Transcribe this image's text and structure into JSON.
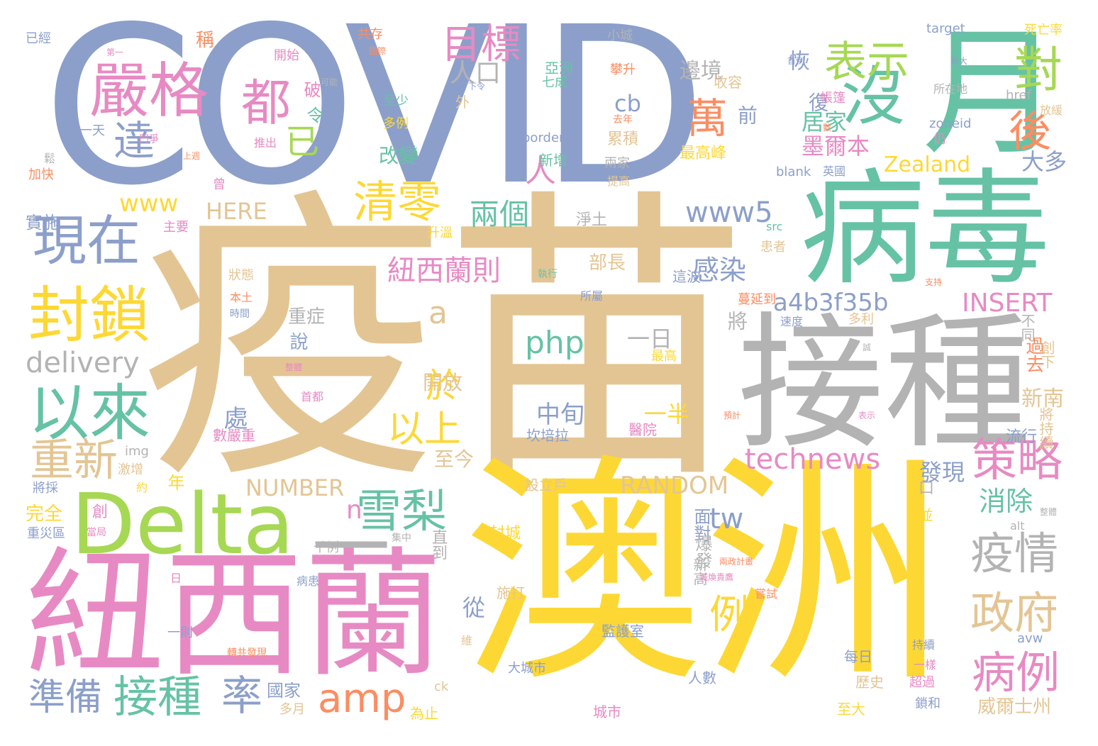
{
  "palette": {
    "slate": "#8c9fca",
    "tan": "#e3c594",
    "gold": "#fdd835",
    "pink": "#e78ac3",
    "green": "#66c2a5",
    "gray": "#b3b3b3",
    "lime": "#a6d854",
    "orange": "#fc8d62"
  },
  "words": [
    {
      "text": "COVID",
      "color": "slate"
    },
    {
      "text": "疫苗",
      "color": "tan"
    },
    {
      "text": "澳洲",
      "color": "gold"
    },
    {
      "text": "紐西蘭",
      "color": "pink"
    },
    {
      "text": "接種",
      "color": "gray"
    },
    {
      "text": "病毒",
      "color": "green"
    },
    {
      "text": "月",
      "color": "green"
    },
    {
      "text": "Delta",
      "color": "lime"
    },
    {
      "text": "嚴格",
      "color": "pink"
    },
    {
      "text": "都",
      "color": "pink"
    },
    {
      "text": "沒",
      "color": "green"
    },
    {
      "text": "目標",
      "color": "pink"
    },
    {
      "text": "表示",
      "color": "lime"
    },
    {
      "text": "對",
      "color": "lime"
    },
    {
      "text": "萬",
      "color": "orange"
    },
    {
      "text": "後",
      "color": "orange"
    },
    {
      "text": "人口",
      "color": "gray"
    },
    {
      "text": "已",
      "color": "lime"
    },
    {
      "text": "達",
      "color": "slate"
    },
    {
      "text": "現在",
      "color": "slate"
    },
    {
      "text": "清零",
      "color": "gold"
    },
    {
      "text": "封鎖",
      "color": "gold"
    },
    {
      "text": "以來",
      "color": "green"
    },
    {
      "text": "人",
      "color": "pink"
    },
    {
      "text": "策略",
      "color": "pink"
    },
    {
      "text": "疫情",
      "color": "gray"
    },
    {
      "text": "政府",
      "color": "tan"
    },
    {
      "text": "病例",
      "color": "pink"
    },
    {
      "text": "雪梨",
      "color": "green"
    },
    {
      "text": "以上",
      "color": "gold"
    },
    {
      "text": "於",
      "color": "gold"
    },
    {
      "text": "重新",
      "color": "tan"
    },
    {
      "text": "準備",
      "color": "slate"
    },
    {
      "text": "接種",
      "color": "green"
    },
    {
      "text": "率",
      "color": "slate"
    },
    {
      "text": "amp",
      "color": "orange"
    },
    {
      "text": "technews",
      "color": "pink"
    },
    {
      "text": "RANDOM",
      "color": "tan"
    },
    {
      "text": "NUMBER",
      "color": "tan"
    },
    {
      "text": "INSERT",
      "color": "pink"
    },
    {
      "text": "a4b3f35b",
      "color": "slate"
    },
    {
      "text": "www5",
      "color": "slate"
    },
    {
      "text": "www",
      "color": "gold"
    },
    {
      "text": "HERE",
      "color": "tan"
    },
    {
      "text": "delivery",
      "color": "gray"
    },
    {
      "text": "php",
      "color": "green"
    },
    {
      "text": "Zealand",
      "color": "gold"
    },
    {
      "text": "兩個",
      "color": "green"
    },
    {
      "text": "紐西蘭則",
      "color": "pink"
    },
    {
      "text": "感染",
      "color": "slate"
    },
    {
      "text": "例",
      "color": "gold"
    },
    {
      "text": "一",
      "color": "gray"
    },
    {
      "text": "n",
      "color": "pink"
    },
    {
      "text": "a",
      "color": "tan"
    },
    {
      "text": "tw",
      "color": "slate"
    },
    {
      "text": "cb",
      "color": "slate"
    },
    {
      "text": "消除",
      "color": "green"
    },
    {
      "text": "發現",
      "color": "slate"
    },
    {
      "text": "流行",
      "color": "slate"
    },
    {
      "text": "居家",
      "color": "green"
    },
    {
      "text": "墨爾本",
      "color": "pink"
    },
    {
      "text": "改變",
      "color": "green"
    },
    {
      "text": "大多",
      "color": "slate"
    },
    {
      "text": "新南",
      "color": "tan"
    },
    {
      "text": "威爾士州",
      "color": "tan"
    },
    {
      "text": "中旬",
      "color": "slate"
    },
    {
      "text": "一半",
      "color": "gold"
    },
    {
      "text": "一日",
      "color": "gray"
    },
    {
      "text": "部長",
      "color": "tan"
    },
    {
      "text": "開放",
      "color": "tan"
    },
    {
      "text": "至今",
      "color": "tan"
    },
    {
      "text": "重症",
      "color": "gray"
    },
    {
      "text": "實施",
      "color": "slate"
    },
    {
      "text": "完全",
      "color": "gold"
    },
    {
      "text": "國家",
      "color": "slate"
    },
    {
      "text": "邊境",
      "color": "gray"
    },
    {
      "text": "收容",
      "color": "tan"
    },
    {
      "text": "累積",
      "color": "tan"
    },
    {
      "text": "新增",
      "color": "green"
    },
    {
      "text": "最高峰",
      "color": "gold"
    },
    {
      "text": "淨土",
      "color": "gray"
    },
    {
      "text": "恢",
      "color": "slate"
    },
    {
      "text": "復",
      "color": "slate"
    },
    {
      "text": "前",
      "color": "slate"
    },
    {
      "text": "令",
      "color": "green"
    },
    {
      "text": "破",
      "color": "pink"
    },
    {
      "text": "處",
      "color": "slate"
    },
    {
      "text": "說",
      "color": "slate"
    },
    {
      "text": "將",
      "color": "gray"
    },
    {
      "text": "年",
      "color": "gold"
    },
    {
      "text": "從",
      "color": "slate"
    },
    {
      "text": "口",
      "color": "gray"
    },
    {
      "text": "並",
      "color": "gold"
    },
    {
      "text": "過去",
      "color": "orange"
    },
    {
      "text": "不同",
      "color": "gray"
    },
    {
      "text": "創下",
      "color": "tan"
    },
    {
      "text": "將持續",
      "color": "tan"
    },
    {
      "text": "面對",
      "color": "slate"
    },
    {
      "text": "爆發",
      "color": "gray"
    },
    {
      "text": "新高",
      "color": "gray"
    },
    {
      "text": "直到",
      "color": "gray"
    },
    {
      "text": "封城",
      "color": "gold"
    },
    {
      "text": "施打",
      "color": "tan"
    },
    {
      "text": "監護室",
      "color": "slate"
    },
    {
      "text": "設立戶",
      "color": "tan"
    },
    {
      "text": "醫院",
      "color": "pink"
    },
    {
      "text": "坎培拉",
      "color": "slate"
    },
    {
      "text": "數嚴重",
      "color": "pink"
    },
    {
      "text": "首都",
      "color": "pink"
    },
    {
      "text": "最高",
      "color": "gold"
    },
    {
      "text": "速度",
      "color": "slate"
    },
    {
      "text": "蔓延到",
      "color": "orange"
    },
    {
      "text": "多利",
      "color": "tan"
    },
    {
      "text": "執行",
      "color": "green"
    },
    {
      "text": "所屬",
      "color": "slate"
    },
    {
      "text": "這波",
      "color": "slate"
    },
    {
      "text": "狀態",
      "color": "tan"
    },
    {
      "text": "本土",
      "color": "orange"
    },
    {
      "text": "時間",
      "color": "slate"
    },
    {
      "text": "主要",
      "color": "pink"
    },
    {
      "text": "升溫",
      "color": "gold"
    },
    {
      "text": "src",
      "color": "green"
    },
    {
      "text": "患者",
      "color": "tan"
    },
    {
      "text": "img",
      "color": "gray"
    },
    {
      "text": "激增",
      "color": "tan"
    },
    {
      "text": "將採",
      "color": "slate"
    },
    {
      "text": "約",
      "color": "gold"
    },
    {
      "text": "創",
      "color": "pink"
    },
    {
      "text": "當局",
      "color": "pink"
    },
    {
      "text": "重災區",
      "color": "slate"
    },
    {
      "text": "千例",
      "color": "gray"
    },
    {
      "text": "集中",
      "color": "gray"
    },
    {
      "text": "病患",
      "color": "slate"
    },
    {
      "text": "日",
      "color": "pink"
    },
    {
      "text": "一則",
      "color": "slate"
    },
    {
      "text": "轉共發現",
      "color": "orange"
    },
    {
      "text": "維",
      "color": "tan"
    },
    {
      "text": "城市",
      "color": "pink"
    },
    {
      "text": "多月",
      "color": "tan"
    },
    {
      "text": "為止",
      "color": "gold"
    },
    {
      "text": "大城市",
      "color": "slate"
    },
    {
      "text": "ck",
      "color": "tan"
    },
    {
      "text": "人數",
      "color": "slate"
    },
    {
      "text": "點",
      "color": "gold"
    },
    {
      "text": "每日",
      "color": "slate"
    },
    {
      "text": "歷史",
      "color": "tan"
    },
    {
      "text": "至大",
      "color": "gold"
    },
    {
      "text": "超過",
      "color": "pink"
    },
    {
      "text": "鎖和",
      "color": "slate"
    },
    {
      "text": "持續",
      "color": "slate"
    },
    {
      "text": "一樣",
      "color": "pink"
    },
    {
      "text": "avw",
      "color": "slate"
    },
    {
      "text": "alt",
      "color": "gray"
    },
    {
      "text": "嘗試",
      "color": "orange"
    },
    {
      "text": "城煥責鷹",
      "color": "pink"
    },
    {
      "text": "兩政計畫",
      "color": "orange"
    },
    {
      "text": "整體",
      "color": "gray"
    },
    {
      "text": "預計",
      "color": "orange"
    },
    {
      "text": "表示",
      "color": "pink"
    },
    {
      "text": "支持",
      "color": "orange"
    },
    {
      "text": "整體",
      "color": "pink"
    },
    {
      "text": "已經",
      "color": "slate"
    },
    {
      "text": "稱",
      "color": "orange"
    },
    {
      "text": "共存",
      "color": "orange"
    },
    {
      "text": "國際",
      "color": "orange"
    },
    {
      "text": "小城",
      "color": "gray"
    },
    {
      "text": "target",
      "color": "slate"
    },
    {
      "text": "死亡率",
      "color": "gold"
    },
    {
      "text": "第一",
      "color": "pink"
    },
    {
      "text": "開始",
      "color": "pink"
    },
    {
      "text": "亞洲",
      "color": "green"
    },
    {
      "text": "七成",
      "color": "green"
    },
    {
      "text": "可能",
      "color": "gray"
    },
    {
      "text": "下令",
      "color": "slate"
    },
    {
      "text": "至少",
      "color": "green"
    },
    {
      "text": "外",
      "color": "tan"
    },
    {
      "text": "多例",
      "color": "gold"
    },
    {
      "text": "推出",
      "color": "pink"
    },
    {
      "text": "門爭",
      "color": "pink"
    },
    {
      "text": "一天",
      "color": "slate"
    },
    {
      "text": "上週",
      "color": "orange"
    },
    {
      "text": "加快",
      "color": "orange"
    },
    {
      "text": "曾",
      "color": "pink"
    },
    {
      "text": "攀升",
      "color": "orange"
    },
    {
      "text": "去年",
      "color": "orange"
    },
    {
      "text": "兩家",
      "color": "gray"
    },
    {
      "text": "提高",
      "color": "tan"
    },
    {
      "text": "border",
      "color": "slate"
    },
    {
      "text": "zoneid",
      "color": "slate"
    },
    {
      "text": "blank",
      "color": "slate"
    },
    {
      "text": "英國",
      "color": "slate"
    },
    {
      "text": "仍",
      "color": "pink"
    },
    {
      "text": "href",
      "color": "gray"
    },
    {
      "text": "放緩",
      "color": "tan"
    },
    {
      "text": "所在地",
      "color": "gray"
    },
    {
      "text": "帳篷",
      "color": "pink"
    },
    {
      "text": "最大",
      "color": "slate"
    },
    {
      "text": "首例",
      "color": "slate"
    },
    {
      "text": "鬆",
      "color": "gray"
    },
    {
      "text": "數",
      "color": "orange"
    },
    {
      "text": "誠",
      "color": "gray"
    }
  ]
}
